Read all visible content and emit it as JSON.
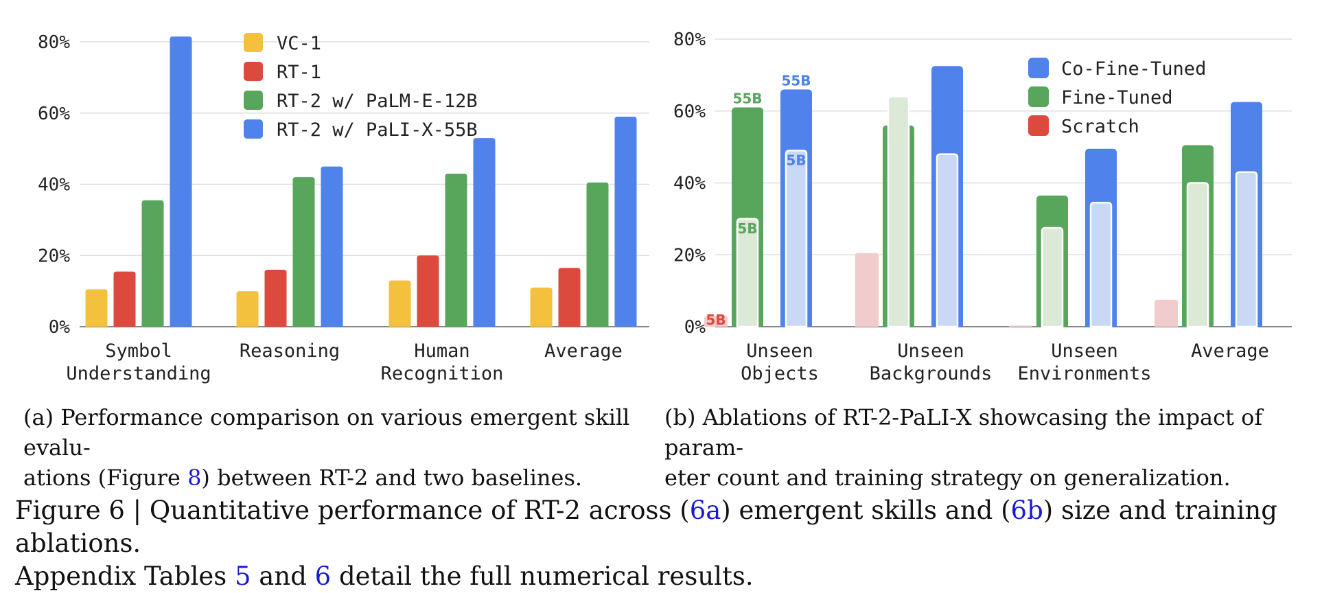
{
  "colors": {
    "vc1": "#f4c13f",
    "rt1": "#db4a3c",
    "palm": "#58a55c",
    "pali": "#4f82ea",
    "palm_light": "#dce9d6",
    "pali_light": "#c9d8f4",
    "scratch_light": "#f0cccc",
    "grid": "#dddddd",
    "axis": "#888888",
    "ref": "#1a1ad6"
  },
  "chart_data": [
    {
      "type": "bar",
      "id": "a",
      "title": "",
      "xlabel": "",
      "ylabel": "",
      "ylim": [
        0,
        80
      ],
      "yticks": [
        "0%",
        "20%",
        "40%",
        "60%",
        "80%"
      ],
      "categories": [
        "Symbol\nUnderstanding",
        "Reasoning",
        "Human\nRecognition",
        "Average"
      ],
      "legend_position": "top-center",
      "series": [
        {
          "name": "VC-1",
          "color_key": "vc1",
          "values": [
            10.5,
            10,
            13,
            11
          ]
        },
        {
          "name": "RT-1",
          "color_key": "rt1",
          "values": [
            15.5,
            16,
            20,
            16.5
          ]
        },
        {
          "name": "RT-2 w/ PaLM-E-12B",
          "color_key": "palm",
          "values": [
            35.5,
            42,
            43,
            40.5
          ]
        },
        {
          "name": "RT-2 w/ PaLI-X-55B",
          "color_key": "pali",
          "values": [
            81.5,
            45,
            53,
            59
          ]
        }
      ]
    },
    {
      "type": "bar",
      "id": "b",
      "title": "",
      "xlabel": "",
      "ylabel": "",
      "ylim": [
        0,
        80
      ],
      "yticks": [
        "0%",
        "20%",
        "40%",
        "60%",
        "80%"
      ],
      "categories": [
        "Unseen\nObjects",
        "Unseen\nBackgrounds",
        "Unseen\nEnvironments",
        "Average"
      ],
      "legend_position": "top-right",
      "legend": [
        "Co-Fine-Tuned",
        "Fine-Tuned",
        "Scratch"
      ],
      "series": [
        {
          "name": "Scratch (5B)",
          "color_key": "scratch_light",
          "values": [
            3,
            20.5,
            0.3,
            7.5
          ],
          "labels": [
            "5B",
            "",
            "",
            ""
          ],
          "label_color_key": "rt1"
        },
        {
          "name": "Fine-Tuned 55B",
          "color_key": "palm",
          "values": [
            61,
            56,
            36.5,
            50.5
          ],
          "labels": [
            "55B",
            "",
            "",
            ""
          ],
          "label_color_key": "palm",
          "group": 1
        },
        {
          "name": "Fine-Tuned 5B",
          "color_key": "palm_light",
          "values": [
            30,
            64,
            27.5,
            40
          ],
          "labels": [
            "5B",
            "",
            "",
            ""
          ],
          "label_color_key": "palm",
          "group": 1,
          "inner": true
        },
        {
          "name": "Co-Fine-Tuned 55B",
          "color_key": "pali",
          "values": [
            66,
            72.5,
            49.5,
            62.5
          ],
          "labels": [
            "55B",
            "",
            "",
            ""
          ],
          "label_color_key": "pali",
          "group": 2
        },
        {
          "name": "Co-Fine-Tuned 5B",
          "color_key": "pali_light",
          "values": [
            49,
            48,
            34.5,
            43
          ],
          "labels": [
            "5B",
            "",
            "",
            ""
          ],
          "label_color_key": "pali",
          "group": 2,
          "inner": true
        }
      ]
    }
  ],
  "captions": {
    "a": "(a) Performance comparison on various emergent skill evalu-ations (Figure 8) between RT-2 and two baselines.",
    "a_line1": "(a) Performance comparison on various emergent skill evalu-",
    "a_line2_pre": "ations (Figure ",
    "a_ref": "8",
    "a_line2_post": ") between RT-2 and two baselines.",
    "b_line1": "(b) Ablations of RT-2-PaLI-X showcasing the impact of param-",
    "b_line2": "eter count and training strategy on generalization.",
    "fig_pre": "Figure 6 | Quantitative performance of RT-2 across (",
    "fig_ref1": "6a",
    "fig_mid1": ") emergent skills and (",
    "fig_ref2": "6b",
    "fig_mid2": ") size and training ablations.",
    "fig_line2_pre": "Appendix Tables ",
    "fig_ref3": "5",
    "fig_and": " and ",
    "fig_ref4": "6",
    "fig_line2_post": " detail the full numerical results."
  }
}
